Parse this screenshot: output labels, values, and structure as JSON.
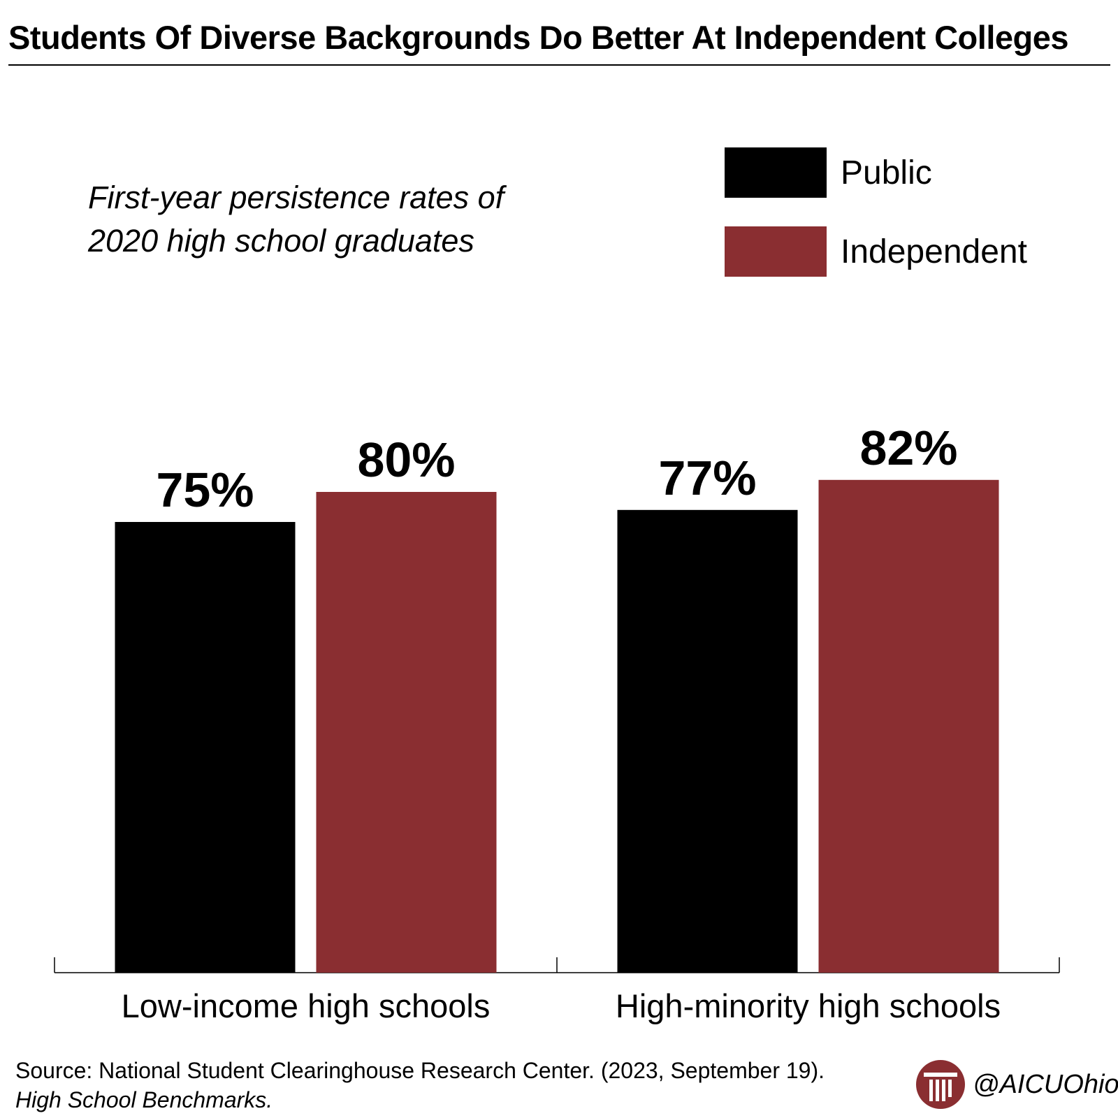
{
  "title": "Students Of Diverse Backgrounds Do Better At Independent Colleges",
  "subtitle": {
    "line1": "First-year persistence rates of",
    "line2": "2020 high school graduates"
  },
  "legend": [
    {
      "label": "Public",
      "color": "#000000"
    },
    {
      "label": "Independent",
      "color": "#8a2e31"
    }
  ],
  "chart_data": {
    "type": "bar",
    "title": "Students Of Diverse Backgrounds Do Better At Independent Colleges",
    "subtitle": "First-year persistence rates of 2020 high school graduates",
    "categories": [
      "Low-income high schools",
      "High-minority high schools"
    ],
    "series": [
      {
        "name": "Public",
        "color": "#000000",
        "values": [
          75,
          77
        ],
        "labels": [
          "75%",
          "77%"
        ]
      },
      {
        "name": "Independent",
        "color": "#8a2e31",
        "values": [
          80,
          82
        ],
        "labels": [
          "80%",
          "82%"
        ]
      }
    ],
    "xlabel": "",
    "ylabel": "",
    "ylim": [
      0,
      100
    ],
    "grid": false,
    "legend_position": "top-right"
  },
  "source": {
    "text": "Source: National Student Clearinghouse Research Center. (2023, September 19).",
    "title": "High School Benchmarks."
  },
  "brand": {
    "logo_icon": "column-logo-icon",
    "handle": "@AICUOhio",
    "color": "#8a2e31"
  }
}
